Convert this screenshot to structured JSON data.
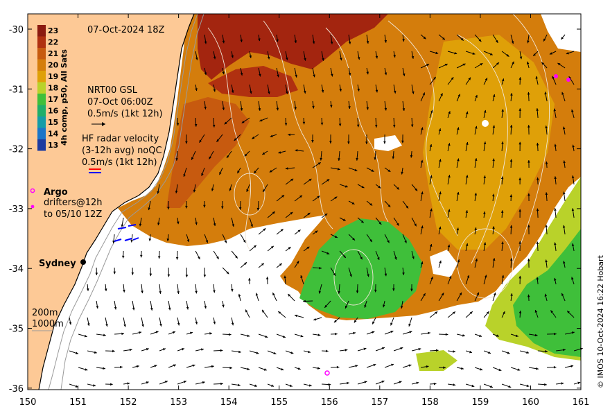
{
  "map": {
    "timestamp": "07-Oct-2024 18Z",
    "credit": "© IMOS 10-Oct-2024 16:22 Hobart",
    "x_ticks": [
      "150",
      "151",
      "152",
      "153",
      "154",
      "155",
      "156",
      "157",
      "158",
      "159",
      "160",
      "161"
    ],
    "y_ticks": [
      "-30",
      "-31",
      "-32",
      "-33",
      "-34",
      "-35",
      "-36"
    ],
    "colorbar": {
      "title": "4h comp, p50, All Sats",
      "levels": [
        "23",
        "22",
        "21",
        "20",
        "19",
        "18",
        "17",
        "16",
        "15",
        "14",
        "13"
      ],
      "colors": [
        "#8b1a10",
        "#b03010",
        "#c75a0f",
        "#d47d0c",
        "#dfa008",
        "#b9d22a",
        "#3fbf3a",
        "#1fae6a",
        "#159ca7",
        "#1a75c8",
        "#1c3aa0"
      ]
    },
    "legend": {
      "gsl_title": "NRT00 GSL",
      "gsl_time": "07-Oct 06:00Z",
      "gsl_scale": "0.5m/s (1kt 12h)",
      "hf_title": "HF radar velocity",
      "hf_avg": "(3-12h avg) noQC",
      "hf_scale": "0.5m/s (1kt 12h)",
      "argo": "Argo",
      "drifters": "drifters@12h",
      "drifters_to": "to 05/10 12Z",
      "city": "Sydney",
      "iso_200": "200m",
      "iso_1000": "1000m"
    },
    "colors": {
      "land": "#fdc996",
      "ocean_warm": "#d47d0c",
      "ocean_hot": "#a3250f",
      "ocean_green": "#3fbf3a",
      "ocean_lime": "#b9d22a",
      "argo": "#ff00ff",
      "hf_red": "#ff0000",
      "hf_blue": "#0000ff"
    }
  }
}
